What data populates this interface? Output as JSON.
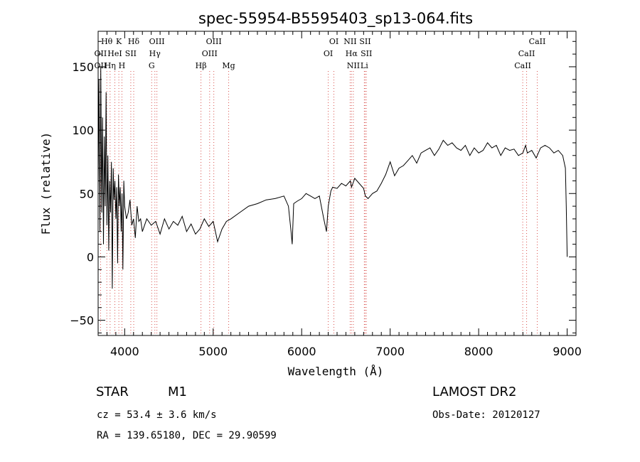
{
  "chart_data": {
    "type": "line",
    "title": "spec-55954-B5595403_sp13-064.fits",
    "xlabel": "Wavelength (Å)",
    "ylabel": "Flux (relative)",
    "xlim": [
      3700,
      9100
    ],
    "ylim": [
      -62,
      178
    ],
    "xticks": [
      4000,
      5000,
      6000,
      7000,
      8000,
      9000
    ],
    "yticks": [
      -50,
      0,
      50,
      100,
      150
    ],
    "x": [
      3700,
      3710,
      3720,
      3730,
      3740,
      3750,
      3760,
      3770,
      3780,
      3790,
      3800,
      3810,
      3820,
      3830,
      3840,
      3850,
      3860,
      3870,
      3880,
      3890,
      3900,
      3910,
      3920,
      3930,
      3940,
      3950,
      3960,
      3970,
      3980,
      3990,
      4000,
      4020,
      4040,
      4060,
      4080,
      4100,
      4120,
      4140,
      4160,
      4180,
      4200,
      4250,
      4300,
      4350,
      4400,
      4450,
      4500,
      4550,
      4600,
      4650,
      4700,
      4750,
      4800,
      4850,
      4900,
      4950,
      5000,
      5050,
      5100,
      5150,
      5200,
      5300,
      5400,
      5500,
      5600,
      5700,
      5800,
      5850,
      5880,
      5893,
      5910,
      5950,
      6000,
      6050,
      6100,
      6150,
      6200,
      6250,
      6280,
      6300,
      6330,
      6350,
      6400,
      6450,
      6500,
      6550,
      6563,
      6600,
      6650,
      6700,
      6720,
      6750,
      6800,
      6850,
      6900,
      6950,
      7000,
      7050,
      7100,
      7150,
      7200,
      7250,
      7300,
      7350,
      7400,
      7450,
      7500,
      7550,
      7600,
      7650,
      7700,
      7750,
      7800,
      7850,
      7900,
      7950,
      8000,
      8050,
      8100,
      8150,
      8200,
      8250,
      8300,
      8350,
      8400,
      8450,
      8500,
      8530,
      8550,
      8600,
      8650,
      8700,
      8750,
      8800,
      8850,
      8900,
      8950,
      8980,
      8990,
      9000
    ],
    "y": [
      55,
      140,
      20,
      150,
      35,
      110,
      10,
      95,
      40,
      130,
      25,
      80,
      5,
      60,
      35,
      75,
      -25,
      70,
      45,
      60,
      30,
      55,
      -5,
      65,
      40,
      55,
      20,
      50,
      -10,
      60,
      40,
      30,
      35,
      45,
      25,
      30,
      15,
      40,
      28,
      30,
      20,
      30,
      25,
      28,
      18,
      30,
      22,
      28,
      25,
      32,
      20,
      26,
      18,
      22,
      30,
      24,
      28,
      12,
      22,
      28,
      30,
      35,
      40,
      42,
      45,
      46,
      48,
      40,
      20,
      10,
      42,
      44,
      46,
      50,
      48,
      46,
      48,
      30,
      20,
      40,
      52,
      55,
      54,
      58,
      56,
      60,
      55,
      62,
      58,
      54,
      48,
      46,
      50,
      52,
      58,
      65,
      75,
      64,
      70,
      72,
      76,
      80,
      74,
      82,
      84,
      86,
      80,
      85,
      92,
      88,
      90,
      86,
      84,
      88,
      80,
      86,
      82,
      84,
      90,
      86,
      88,
      80,
      86,
      84,
      85,
      80,
      82,
      88,
      82,
      84,
      78,
      86,
      88,
      86,
      82,
      84,
      80,
      70,
      40,
      0
    ],
    "spectral_lines": [
      {
        "label": "Hθ",
        "wavelength": 3798,
        "row": 1
      },
      {
        "label": "OII",
        "wavelength": 3727,
        "row": 2
      },
      {
        "label": "HeI",
        "wavelength": 3889,
        "row": 2
      },
      {
        "label": "SII",
        "wavelength": 4069,
        "row": 2
      },
      {
        "label": "OII",
        "wavelength": 3727,
        "row": 3
      },
      {
        "label": "Hη",
        "wavelength": 3835,
        "row": 3
      },
      {
        "label": "K",
        "wavelength": 3934,
        "row": 1
      },
      {
        "label": "H",
        "wavelength": 3969,
        "row": 3
      },
      {
        "label": "Hδ",
        "wavelength": 4102,
        "row": 1
      },
      {
        "label": "OIII",
        "wavelength": 4364,
        "row": 1
      },
      {
        "label": "Hγ",
        "wavelength": 4341,
        "row": 2
      },
      {
        "label": "G",
        "wavelength": 4305,
        "row": 3
      },
      {
        "label": "OIII",
        "wavelength": 5007,
        "row": 1
      },
      {
        "label": "OIII",
        "wavelength": 4960,
        "row": 2
      },
      {
        "label": "Hβ",
        "wavelength": 4862,
        "row": 3
      },
      {
        "label": "Mg",
        "wavelength": 5175,
        "row": 3
      },
      {
        "label": "OI",
        "wavelength": 6364,
        "row": 1
      },
      {
        "label": "OI",
        "wavelength": 6300,
        "row": 2
      },
      {
        "label": "NII",
        "wavelength": 6548,
        "row": 1
      },
      {
        "label": "SII",
        "wavelength": 6717,
        "row": 1
      },
      {
        "label": "Hα",
        "wavelength": 6563,
        "row": 2
      },
      {
        "label": "SII",
        "wavelength": 6731,
        "row": 2
      },
      {
        "label": "NII",
        "wavelength": 6584,
        "row": 3
      },
      {
        "label": "Li",
        "wavelength": 6708,
        "row": 3
      },
      {
        "label": "CaII",
        "wavelength": 8662,
        "row": 1
      },
      {
        "label": "CaII",
        "wavelength": 8542,
        "row": 2
      },
      {
        "label": "CaII",
        "wavelength": 8498,
        "row": 3
      }
    ]
  },
  "info": {
    "class": "STAR",
    "subclass": "M1",
    "survey": "LAMOST DR2",
    "cz": "cz = 53.4 ± 3.6 km/s",
    "obs_date": "Obs-Date: 20120127",
    "radec": "RA = 139.65180, DEC =  29.90599"
  }
}
